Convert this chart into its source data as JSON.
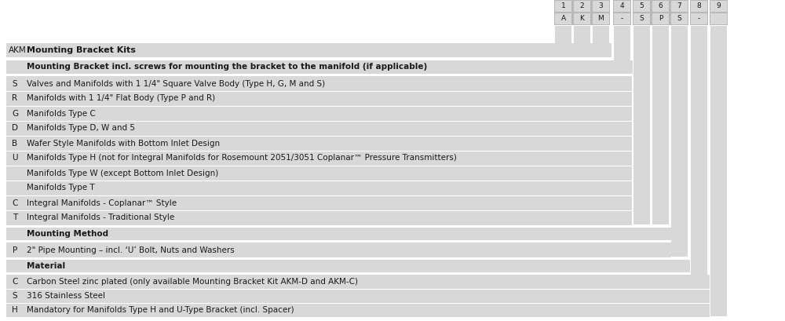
{
  "bg_color": "#d8d8d8",
  "white": "#ffffff",
  "border_gray": "#b8b8b8",
  "cell_gray": "#d8d8d8",
  "text_color": "#1a1a1a",
  "col_numbers": [
    "1",
    "2",
    "3",
    "4",
    "5",
    "6",
    "7",
    "8",
    "9"
  ],
  "col_letters": [
    "A",
    "K",
    "M",
    "-",
    "S",
    "P",
    "S",
    "-",
    ""
  ],
  "akm_label": "AKM",
  "akm_text": "Mounting Bracket Kits",
  "section1_header": "Mounting Bracket incl. screws for mounting the bracket to the manifold (if applicable)",
  "section1_rows": [
    {
      "code": "S",
      "text": "Valves and Manifolds with 1 1/4\" Square Valve Body (Type H, G, M and S)"
    },
    {
      "code": "R",
      "text": "Manifolds with 1 1/4\" Flat Body (Type P and R)"
    },
    {
      "code": "G",
      "text": "Manifolds Type C"
    },
    {
      "code": "D",
      "text": "Manifolds Type D, W and 5"
    },
    {
      "code": "B",
      "text": "Wafer Style Manifolds with Bottom Inlet Design"
    },
    {
      "code": "U",
      "text": "Manifolds Type H (not for Integral Manifolds for Rosemount 2051/3051 Coplanar™ Pressure Transmitters)"
    },
    {
      "code": "",
      "text": "Manifolds Type W (except Bottom Inlet Design)"
    },
    {
      "code": "",
      "text": "Manifolds Type T"
    },
    {
      "code": "C",
      "text": "Integral Manifolds - Coplanar™ Style"
    },
    {
      "code": "T",
      "text": "Integral Manifolds - Traditional Style"
    }
  ],
  "section2_header": "Mounting Method",
  "section2_rows": [
    {
      "code": "P",
      "text": "2\" Pipe Mounting – incl. ‘U’ Bolt, Nuts and Washers"
    }
  ],
  "section3_header": "Material",
  "section3_rows": [
    {
      "code": "C",
      "text": "Carbon Steel zinc plated (only available Mounting Bracket Kit AKM-D and AKM-C)"
    },
    {
      "code": "S",
      "text": "316 Stainless Steel"
    },
    {
      "code": "H",
      "text": "Mandatory for Manifolds Type H and U-Type Bracket (incl. Spacer)"
    }
  ]
}
